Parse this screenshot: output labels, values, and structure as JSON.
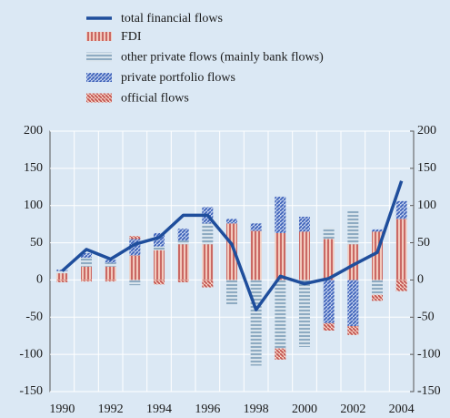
{
  "chart_data": {
    "type": "bar",
    "categories": [
      "1990",
      null,
      "1992",
      null,
      "1994",
      null,
      "1996",
      null,
      "1998",
      null,
      "2000",
      null,
      "2002",
      null,
      "2004"
    ],
    "line": {
      "name": "total financial flows",
      "color": "#1f4e9c",
      "values": [
        12,
        41,
        28,
        48,
        57,
        87,
        87,
        48,
        -40,
        5,
        -5,
        2,
        20,
        37,
        133
      ]
    },
    "series": [
      {
        "name": "FDI",
        "color": "#c0504d",
        "pattern": "vertical",
        "values": [
          9,
          18,
          18,
          33,
          40,
          48,
          48,
          76,
          66,
          63,
          65,
          55,
          48,
          65,
          82
        ]
      },
      {
        "name": "other private flows (mainly bank flows)",
        "color": "#7b9db8",
        "pattern": "horizontal",
        "values": [
          3,
          12,
          5,
          -7,
          5,
          5,
          28,
          -33,
          -115,
          -92,
          -90,
          15,
          45,
          -20,
          0
        ]
      },
      {
        "name": "private portfolio flows",
        "color": "#3a5fb8",
        "pattern": "diagonal",
        "values": [
          2,
          6,
          4,
          22,
          18,
          16,
          22,
          6,
          10,
          49,
          20,
          -58,
          -62,
          3,
          24
        ]
      },
      {
        "name": "official flows",
        "color": "#c0504d",
        "pattern": "antidiagonal",
        "values": [
          -3,
          -2,
          -2,
          4,
          -6,
          -3,
          -10,
          0,
          0,
          -15,
          0,
          -10,
          -12,
          -8,
          -15
        ]
      }
    ],
    "ylim": [
      -150,
      200
    ],
    "yticks": [
      -150,
      -100,
      -50,
      0,
      50,
      100,
      150,
      200
    ],
    "y2lim": [
      -150,
      200
    ],
    "y2ticks": [
      -150,
      -100,
      -50,
      0,
      50,
      100,
      150,
      200
    ],
    "grid": true
  }
}
